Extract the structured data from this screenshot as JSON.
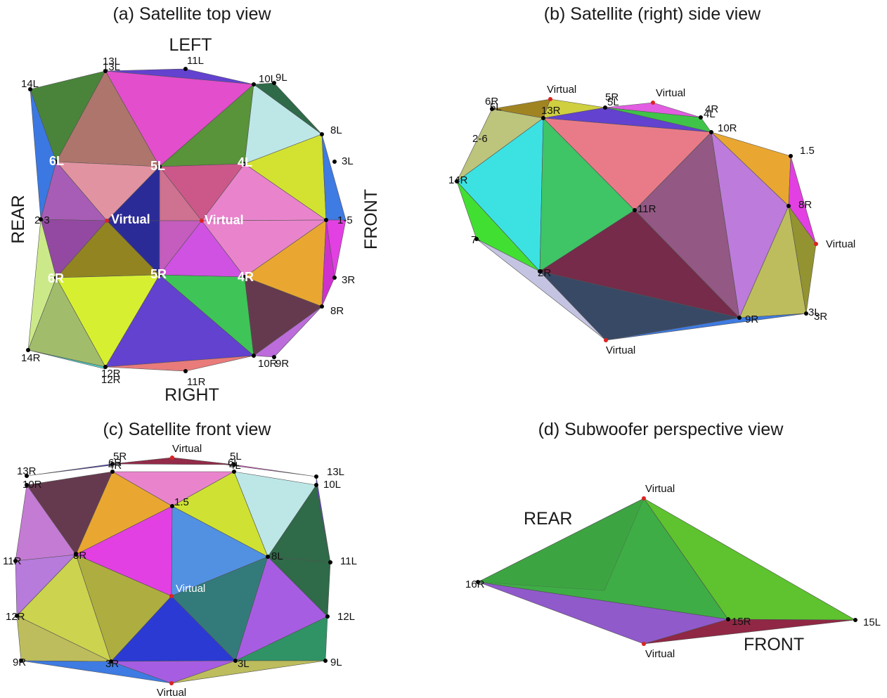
{
  "panels": {
    "a": {
      "title": "(a) Satellite top view",
      "directions": {
        "left": "LEFT",
        "right": "RIGHT",
        "rear": "REAR",
        "front": "FRONT"
      },
      "labels": [
        "13L",
        "13L",
        "11L",
        "10L",
        "9L",
        "14L",
        "6L",
        "5L",
        "4L",
        "8L",
        "3L",
        "Virtual",
        "Virtual",
        "2-3",
        "1-5",
        "6R",
        "5R",
        "4R",
        "3R",
        "8R",
        "14R",
        "12R",
        "12R",
        "11R",
        "10R",
        "9R"
      ]
    },
    "b": {
      "title": "(b) Satellite (right) side view",
      "labels": [
        "Virtual",
        "Virtual",
        "6R",
        "5L",
        "5R",
        "5L",
        "4R",
        "4L",
        "13R",
        "10R",
        "1.5",
        "2-6",
        "14R",
        "11R",
        "8R",
        "7-",
        "2R",
        "Virtual",
        "9R",
        "3L",
        "3R",
        "Virtual"
      ]
    },
    "c": {
      "title": "(c) Satellite front view",
      "labels": [
        "5R",
        "Virtual",
        "5L",
        "6R",
        "4R",
        "6L",
        "4L",
        "13R",
        "13L",
        "10R",
        "10L",
        "1.5",
        "8R",
        "8L",
        "11R",
        "11L",
        "Virtual",
        "12R",
        "12L",
        "9R",
        "9L",
        "3R",
        "3L",
        "Virtual"
      ]
    },
    "d": {
      "title": "(d) Subwoofer perspective view",
      "directions": {
        "rear": "REAR",
        "front": "FRONT"
      },
      "labels": [
        "Virtual",
        "16R",
        "15R",
        "15L",
        "Virtual"
      ]
    }
  },
  "colors": {
    "green": "#2fbf3a",
    "lime": "#66cc22",
    "magenta": "#e030e0",
    "pink": "#e87ac8",
    "cyan": "#2ce0e0",
    "navy": "#1a1a8a",
    "purple": "#9966cc",
    "orange": "#e89b1c",
    "yellow": "#cce022",
    "maroon": "#6a1a3a",
    "vertex": "#000000",
    "virtual_vertex": "#dd2222"
  }
}
